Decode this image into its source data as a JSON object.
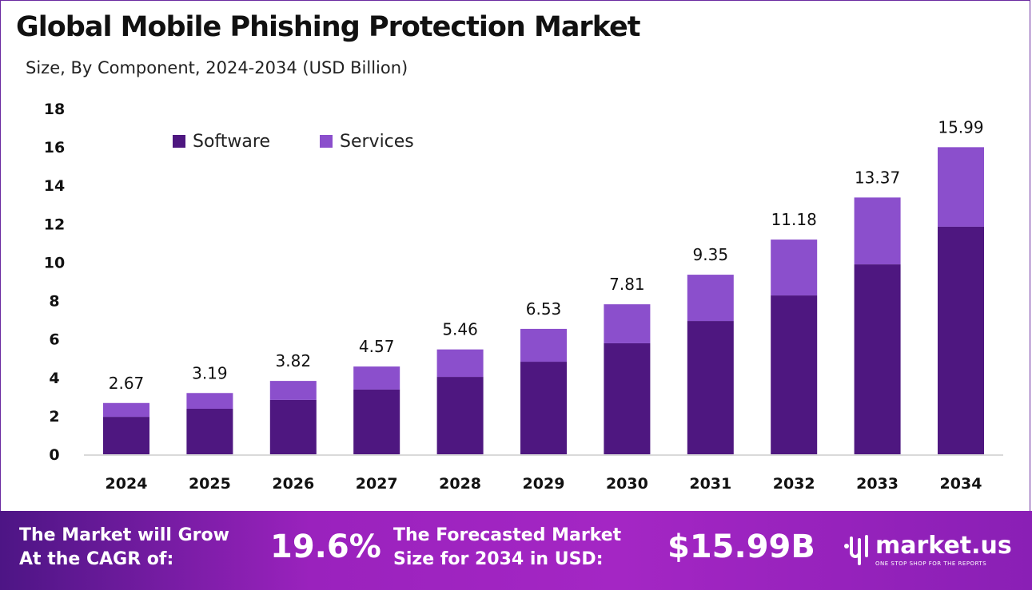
{
  "header": {
    "title": "Global Mobile Phishing Protection Market",
    "subtitle": "Size, By Component, 2024-2034 (USD Billion)"
  },
  "chart_data": {
    "type": "bar",
    "stacked": true,
    "categories": [
      "2024",
      "2025",
      "2026",
      "2027",
      "2028",
      "2029",
      "2030",
      "2031",
      "2032",
      "2033",
      "2034"
    ],
    "series": [
      {
        "name": "Software",
        "color": "#4E1780",
        "values": [
          1.95,
          2.37,
          2.83,
          3.37,
          4.03,
          4.82,
          5.78,
          6.94,
          8.27,
          9.89,
          11.85
        ]
      },
      {
        "name": "Services",
        "color": "#8B4FCC",
        "values": [
          0.72,
          0.82,
          0.99,
          1.2,
          1.43,
          1.71,
          2.03,
          2.41,
          2.91,
          3.48,
          4.14
        ]
      }
    ],
    "totals": [
      2.67,
      3.19,
      3.82,
      4.57,
      5.46,
      6.53,
      7.81,
      9.35,
      11.18,
      13.37,
      15.99
    ],
    "total_labels": [
      "2.67",
      "3.19",
      "3.82",
      "4.57",
      "5.46",
      "6.53",
      "7.81",
      "9.35",
      "11.18",
      "13.37",
      "15.99"
    ],
    "ylim": [
      0,
      18
    ],
    "yticks": [
      "0",
      "2",
      "4",
      "6",
      "8",
      "10",
      "12",
      "14",
      "16",
      "18"
    ],
    "grid": false,
    "legend": "top-left"
  },
  "footer": {
    "cagr_label_line1": "The Market will Grow",
    "cagr_label_line2": "At the CAGR of:",
    "cagr_value": "19.6%",
    "forecast_label_line1": "The Forecasted Market",
    "forecast_label_line2": "Size for 2034 in USD:",
    "forecast_value": "$15.99B",
    "logo_name": "market.us",
    "logo_tagline": "ONE STOP SHOP FOR THE REPORTS"
  }
}
